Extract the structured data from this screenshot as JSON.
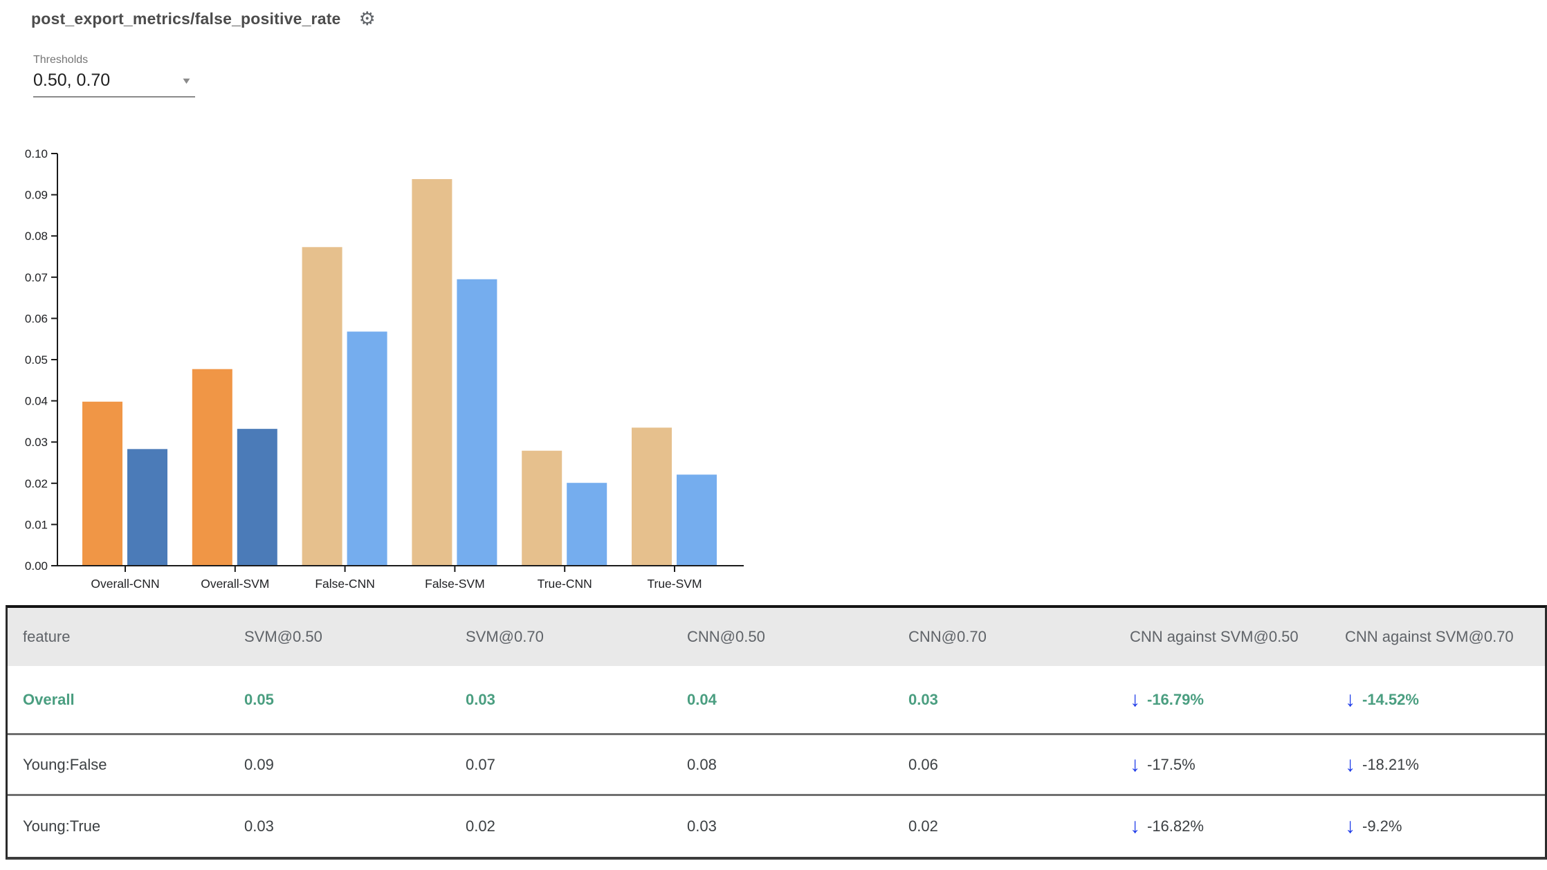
{
  "header": {
    "title": "post_export_metrics/false_positive_rate"
  },
  "icons": {
    "gear": "⚙",
    "dropdown_caret": "▼",
    "arrow_down": "↓"
  },
  "thresholds": {
    "label": "Thresholds",
    "value": "0.50, 0.70"
  },
  "chart_data": {
    "type": "bar",
    "categories": [
      "Overall-CNN",
      "Overall-SVM",
      "False-CNN",
      "False-SVM",
      "True-CNN",
      "True-SVM"
    ],
    "series": [
      {
        "name": "threshold 0.50",
        "values": [
          0.0398,
          0.0477,
          0.0773,
          0.0938,
          0.0279,
          0.0335
        ]
      },
      {
        "name": "threshold 0.70",
        "values": [
          0.0283,
          0.0332,
          0.0568,
          0.0695,
          0.0201,
          0.0221
        ]
      }
    ],
    "highlighted": [
      true,
      true,
      false,
      false,
      false,
      false
    ],
    "title": "",
    "xlabel": "",
    "ylabel": "",
    "ylim": [
      0,
      0.1
    ],
    "ytick_step": 0.01,
    "grid": false,
    "legend": "none",
    "colors": {
      "t50_highlight": "#f09646",
      "t70_highlight": "#4b7bb8",
      "t50_normal": "#e6c08d",
      "t70_normal": "#75adee",
      "axis": "#1a1a1a",
      "tick_label": "#202124"
    }
  },
  "table": {
    "columns": [
      "feature",
      "SVM@0.50",
      "SVM@0.70",
      "CNN@0.50",
      "CNN@0.70",
      "CNN against SVM@0.50",
      "CNN against SVM@0.70"
    ],
    "rows": [
      {
        "feature": "Overall",
        "svm50": "0.05",
        "svm70": "0.03",
        "cnn50": "0.04",
        "cnn70": "0.03",
        "cmp50": "-16.79%",
        "cmp70": "-14.52%"
      },
      {
        "feature": "Young:False",
        "svm50": "0.09",
        "svm70": "0.07",
        "cnn50": "0.08",
        "cnn70": "0.06",
        "cmp50": "-17.5%",
        "cmp70": "-18.21%"
      },
      {
        "feature": "Young:True",
        "svm50": "0.03",
        "svm70": "0.02",
        "cnn50": "0.03",
        "cnn70": "0.02",
        "cmp50": "-16.82%",
        "cmp70": "-9.2%"
      }
    ]
  }
}
